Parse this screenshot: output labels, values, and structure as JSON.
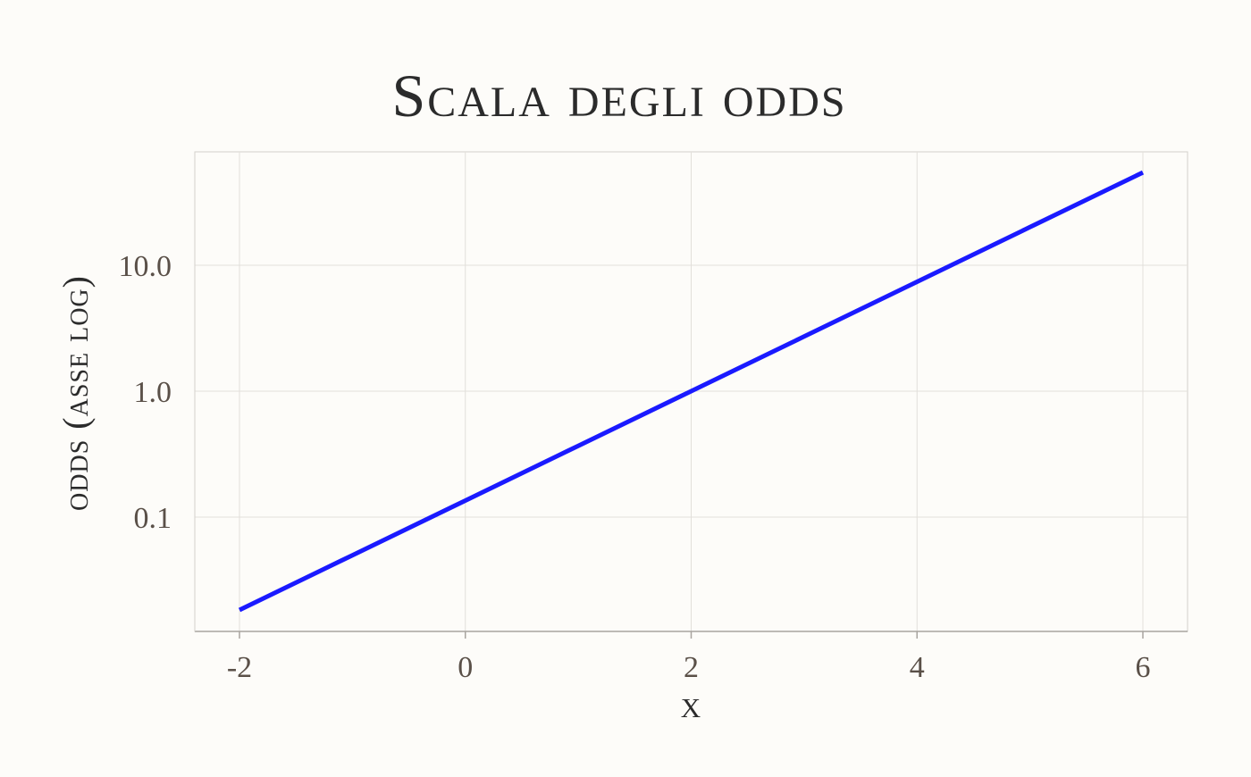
{
  "chart_data": {
    "type": "line",
    "title": "Scala degli odds",
    "xlabel": "x",
    "ylabel": "odds (asse log)",
    "xlim": [
      -2,
      6
    ],
    "y_scale": "log10",
    "x_ticks": [
      -2,
      0,
      2,
      4,
      6
    ],
    "x_tick_labels": [
      "-2",
      "0",
      "2",
      "4",
      "6"
    ],
    "y_ticks": [
      0.1,
      1,
      10
    ],
    "y_tick_labels": [
      "0.1",
      "1.0",
      "10.0"
    ],
    "grid": true,
    "series": [
      {
        "color": "#1a1aff",
        "x": [
          -2,
          -1,
          0,
          1,
          2,
          3,
          4,
          5,
          6
        ],
        "y": [
          0.0183,
          0.0498,
          0.1353,
          0.3679,
          1.0,
          2.718,
          7.389,
          20.09,
          54.6
        ]
      }
    ]
  }
}
